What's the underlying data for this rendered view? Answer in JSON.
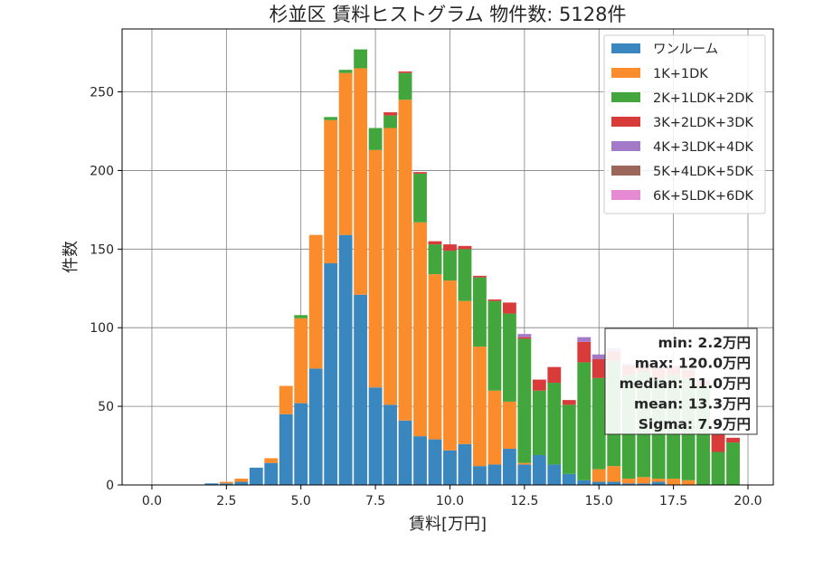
{
  "chart_data": {
    "type": "bar",
    "stacked": true,
    "title": "杉並区 賃料ヒストグラム  物件数: 5128件",
    "xlabel": "賃料[万円]",
    "ylabel": "件数",
    "xlim": [
      -1.0,
      20.85
    ],
    "ylim": [
      0,
      290
    ],
    "xticks": [
      0.0,
      2.5,
      5.0,
      7.5,
      10.0,
      12.5,
      15.0,
      17.5,
      20.0
    ],
    "xtick_labels": [
      "0.0",
      "2.5",
      "5.0",
      "7.5",
      "10.0",
      "12.5",
      "15.0",
      "17.5",
      "20.0"
    ],
    "yticks": [
      0,
      50,
      100,
      150,
      200,
      250
    ],
    "ytick_labels": [
      "0",
      "50",
      "100",
      "150",
      "200",
      "250"
    ],
    "grid": true,
    "legend_position": "top-right",
    "bin_width": 0.5,
    "bin_centers": [
      2.0,
      2.5,
      3.0,
      3.5,
      4.0,
      4.5,
      5.0,
      5.5,
      6.0,
      6.5,
      7.0,
      7.5,
      8.0,
      8.5,
      9.0,
      9.5,
      10.0,
      10.5,
      11.0,
      11.5,
      12.0,
      12.5,
      13.0,
      13.5,
      14.0,
      14.5,
      15.0,
      15.5,
      16.0,
      16.5,
      17.0,
      17.5,
      18.0,
      18.5,
      19.0,
      19.5
    ],
    "series": [
      {
        "name": "ワンルーム",
        "color": "#3a86bf",
        "values": [
          1,
          1,
          2,
          11,
          14,
          45,
          52,
          74,
          141,
          159,
          121,
          62,
          51,
          41,
          31,
          29,
          22,
          26,
          12,
          13,
          23,
          13,
          19,
          13,
          7,
          3,
          2,
          2,
          1,
          1,
          2,
          0,
          0,
          0,
          0,
          0
        ]
      },
      {
        "name": "1K+1DK",
        "color": "#fb8c2c",
        "values": [
          0,
          1,
          2,
          0,
          3,
          18,
          54,
          85,
          91,
          103,
          144,
          151,
          176,
          204,
          136,
          105,
          108,
          91,
          76,
          47,
          30,
          1,
          0,
          0,
          0,
          0,
          8,
          10,
          3,
          4,
          2,
          4,
          3,
          0,
          0,
          0
        ]
      },
      {
        "name": "2K+1LDK+2DK",
        "color": "#42a63d",
        "values": [
          0,
          0,
          0,
          0,
          0,
          0,
          2,
          0,
          2,
          2,
          12,
          14,
          8,
          17,
          31,
          19,
          19,
          33,
          44,
          57,
          56,
          79,
          41,
          52,
          44,
          75,
          58,
          67,
          66,
          67,
          64,
          66,
          65,
          63,
          21,
          27
        ]
      },
      {
        "name": "3K+2LDK+3DK",
        "color": "#d93b3b",
        "values": [
          0,
          0,
          0,
          0,
          0,
          0,
          0,
          0,
          0,
          0,
          0,
          0,
          2,
          1,
          1,
          2,
          4,
          2,
          1,
          1,
          7,
          1,
          7,
          10,
          3,
          13,
          12,
          6,
          6,
          4,
          6,
          5,
          5,
          3,
          11,
          3
        ]
      },
      {
        "name": "4K+3LDK+4DK",
        "color": "#a27ac8",
        "values": [
          0,
          0,
          0,
          0,
          0,
          0,
          0,
          0,
          0,
          0,
          0,
          0,
          0,
          0,
          0,
          0,
          0,
          0,
          0,
          0,
          0,
          2,
          0,
          0,
          0,
          3,
          3,
          2,
          1,
          1,
          2,
          1,
          1,
          1,
          1,
          0
        ]
      },
      {
        "name": "5K+4LDK+5DK",
        "color": "#9b675b",
        "values": [
          0,
          0,
          0,
          0,
          0,
          0,
          0,
          0,
          0,
          0,
          0,
          0,
          0,
          0,
          0,
          0,
          0,
          0,
          0,
          0,
          0,
          0,
          0,
          0,
          0,
          0,
          0,
          0,
          0,
          0,
          0,
          0,
          0,
          0,
          0,
          0
        ]
      },
      {
        "name": "6K+5LDK+6DK",
        "color": "#e58ad3",
        "values": [
          0,
          0,
          0,
          0,
          0,
          0,
          0,
          0,
          0,
          0,
          0,
          0,
          0,
          0,
          0,
          0,
          0,
          0,
          0,
          0,
          0,
          0,
          0,
          0,
          0,
          0,
          0,
          0,
          0,
          0,
          0,
          0,
          0,
          0,
          0,
          0
        ]
      }
    ],
    "stats_box": {
      "lines": [
        "min: 2.2万円",
        "max: 120.0万円",
        "median: 11.0万円",
        "mean: 13.3万円",
        "Sigma: 7.9万円"
      ]
    }
  }
}
